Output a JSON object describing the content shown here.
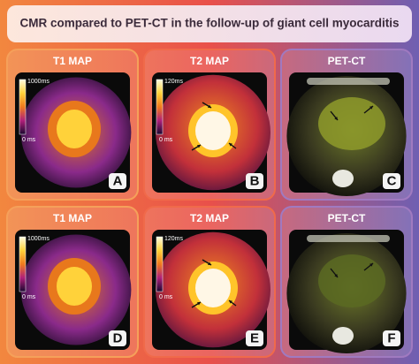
{
  "title": "CMR compared to PET-CT in the follow-up  of giant cell myocarditis",
  "panels": [
    {
      "label": "T1 MAP",
      "scale_max": "1000ms",
      "scale_min": "0 ms",
      "letter": "A"
    },
    {
      "label": "T2 MAP",
      "scale_max": "120ms",
      "scale_min": "0 ms",
      "letter": "B"
    },
    {
      "label": "PET-CT",
      "letter": "C"
    },
    {
      "label": "T1 MAP",
      "scale_max": "1000ms",
      "scale_min": "0 ms",
      "letter": "D"
    },
    {
      "label": "T2 MAP",
      "scale_max": "120ms",
      "scale_min": "0 ms",
      "letter": "E"
    },
    {
      "label": "PET-CT",
      "letter": "F"
    }
  ]
}
